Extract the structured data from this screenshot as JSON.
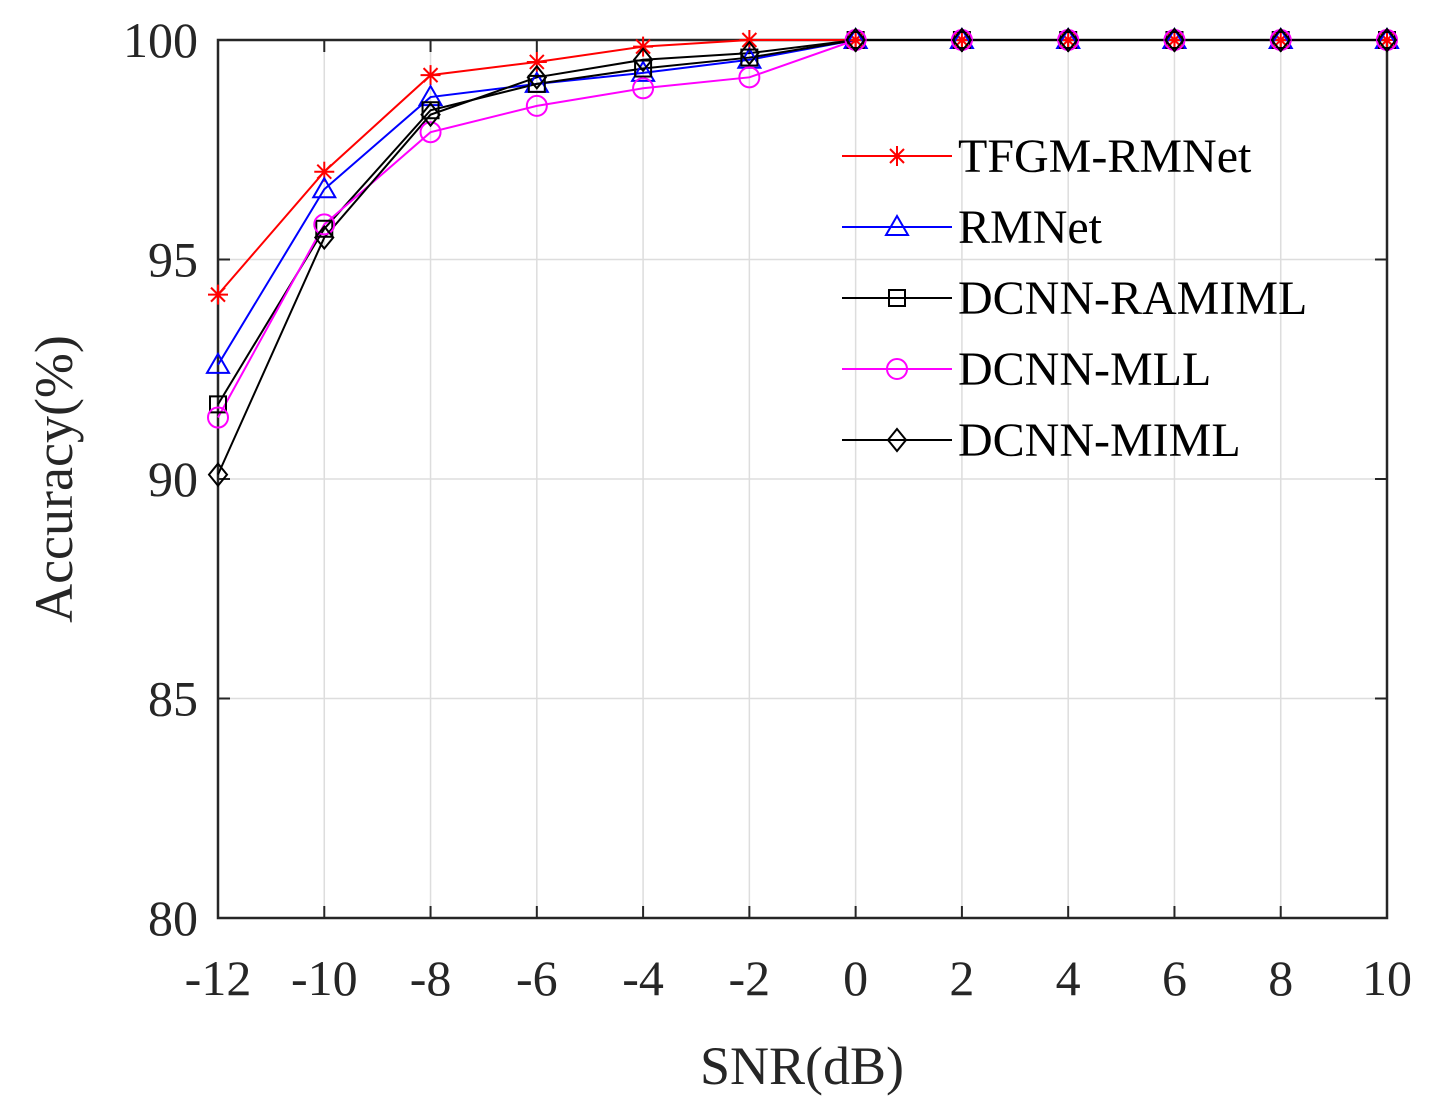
{
  "chart_data": {
    "type": "line",
    "title": "",
    "xlabel": "SNR(dB)",
    "ylabel": "Accuracy(%)",
    "x": [
      -12,
      -10,
      -8,
      -6,
      -4,
      -2,
      0,
      2,
      4,
      6,
      8,
      10
    ],
    "xlim": [
      -12,
      10
    ],
    "ylim": [
      80,
      100
    ],
    "xticks": [
      "-12",
      "-10",
      "-8",
      "-6",
      "-4",
      "-2",
      "0",
      "2",
      "4",
      "6",
      "8",
      "10"
    ],
    "yticks": [
      "80",
      "85",
      "90",
      "95",
      "100"
    ],
    "grid": true,
    "legend_position": "right",
    "series": [
      {
        "name": "TFGM-RMNet",
        "color": "#ff0000",
        "marker": "asterisk",
        "values": [
          94.2,
          97.0,
          99.2,
          99.5,
          99.85,
          100,
          100,
          100,
          100,
          100,
          100,
          100
        ]
      },
      {
        "name": "RMNet",
        "color": "#0000ff",
        "marker": "triangle",
        "values": [
          92.6,
          96.6,
          98.7,
          99.0,
          99.25,
          99.55,
          100,
          100,
          100,
          100,
          100,
          100
        ]
      },
      {
        "name": "DCNN-RAMIML",
        "color": "#000000",
        "marker": "square",
        "values": [
          91.7,
          95.7,
          98.4,
          99.0,
          99.35,
          99.6,
          100,
          100,
          100,
          100,
          100,
          100
        ]
      },
      {
        "name": "DCNN-MLL",
        "color": "#ff00ff",
        "marker": "circle",
        "values": [
          91.4,
          95.8,
          97.9,
          98.5,
          98.9,
          99.15,
          100,
          100,
          100,
          100,
          100,
          100
        ]
      },
      {
        "name": "DCNN-MIML",
        "color": "#000000",
        "marker": "diamond",
        "values": [
          90.1,
          95.5,
          98.3,
          99.15,
          99.55,
          99.7,
          100,
          100,
          100,
          100,
          100,
          100
        ]
      }
    ]
  }
}
